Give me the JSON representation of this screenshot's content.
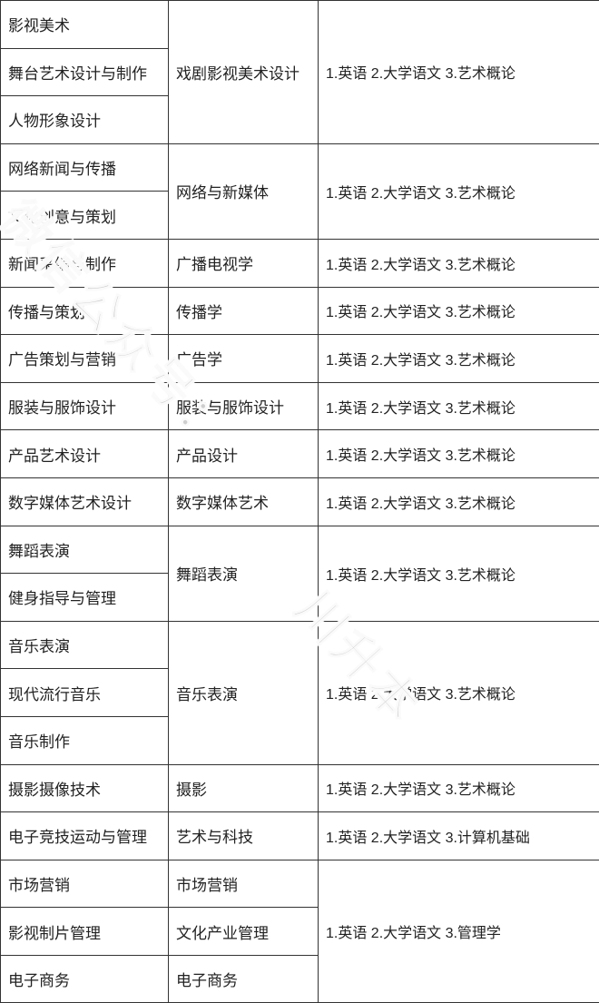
{
  "table": {
    "border_color": "#333333",
    "text_color": "#222222",
    "background_color": "#ffffff",
    "font_size": 17,
    "columns": {
      "col1_width": 185,
      "col2_width": 165,
      "col3_width": 310
    },
    "rows": [
      {
        "c1": "影视美术",
        "c2": "戏剧影视美术设计",
        "c3": "1.英语   2.大学语文   3.艺术概论",
        "c2_rowspan": 3,
        "c3_rowspan": 3
      },
      {
        "c1": "舞台艺术设计与制作"
      },
      {
        "c1": "人物形象设计"
      },
      {
        "c1": "网络新闻与传播",
        "c2": "网络与新媒体",
        "c3": "1.英语   2.大学语文   3.艺术概论",
        "c2_rowspan": 2,
        "c3_rowspan": 2
      },
      {
        "c1": "文化创意与策划"
      },
      {
        "c1": "新闻采编与制作",
        "c2": "广播电视学",
        "c3": "1.英语   2.大学语文  3.艺术概论"
      },
      {
        "c1": "传播与策划",
        "c2": "传播学",
        "c3": "1.英语   2.大学语文  3.艺术概论"
      },
      {
        "c1": "广告策划与营销",
        "c2": "广告学",
        "c3": "1.英语   2.大学语文  3.艺术概论"
      },
      {
        "c1": "服装与服饰设计",
        "c2": "服装与服饰设计",
        "c3": "1.英语   2.大学语文  3.艺术概论"
      },
      {
        "c1": "产品艺术设计",
        "c2": "产品设计",
        "c3": "1.英语   2.大学语文  3.艺术概论"
      },
      {
        "c1": "数字媒体艺术设计",
        "c2": "数字媒体艺术",
        "c3": "1.英语   2.大学语文   3.艺术概论"
      },
      {
        "c1": "舞蹈表演",
        "c2": "舞蹈表演",
        "c3": "1.英语   2.大学语文  3.艺术概论",
        "c2_rowspan": 2,
        "c3_rowspan": 2
      },
      {
        "c1": "健身指导与管理"
      },
      {
        "c1": "音乐表演",
        "c2": "音乐表演",
        "c3": "1.英语   2.大学语文   3.艺术概论",
        "c2_rowspan": 3,
        "c3_rowspan": 3
      },
      {
        "c1": "现代流行音乐"
      },
      {
        "c1": "音乐制作"
      },
      {
        "c1": "摄影摄像技术",
        "c2": "摄影",
        "c3": "1.英语   2.大学语文   3.艺术概论"
      },
      {
        "c1": "电子竞技运动与管理",
        "c2": "艺术与科技",
        "c3": "1.英语   2.大学语文   3.计算机基础"
      },
      {
        "c1": "市场营销",
        "c2": "市场营销",
        "c3": "1.英语   2.大学语文  3.管理学",
        "c3_rowspan": 3
      },
      {
        "c1": "影视制片管理",
        "c2": "文化产业管理"
      },
      {
        "c1": "电子商务",
        "c2": "电子商务"
      }
    ]
  },
  "watermark": {
    "text1": "微信公众号：",
    "text2": "川升本",
    "color": "rgba(80,80,80,0.28)",
    "font_size": 54
  }
}
